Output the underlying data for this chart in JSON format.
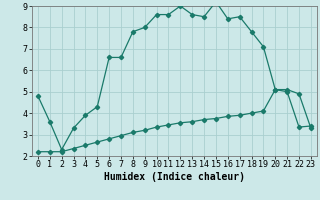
{
  "background_color": "#cce8e8",
  "grid_color": "#aacfcf",
  "line_color": "#1a7a6a",
  "line1_x": [
    0,
    1,
    2,
    3,
    4,
    5,
    6,
    7,
    8,
    9,
    10,
    11,
    12,
    13,
    14,
    15,
    16,
    17,
    18,
    19,
    20,
    21,
    22,
    23
  ],
  "line1_y": [
    4.8,
    3.6,
    2.3,
    3.3,
    3.9,
    4.3,
    6.6,
    6.6,
    7.8,
    8.0,
    8.6,
    8.6,
    9.0,
    8.6,
    8.5,
    9.2,
    8.4,
    8.5,
    7.8,
    7.1,
    5.1,
    5.1,
    4.9,
    3.3
  ],
  "line2_x": [
    0,
    1,
    2,
    3,
    4,
    5,
    6,
    7,
    8,
    9,
    10,
    11,
    12,
    13,
    14,
    15,
    16,
    17,
    18,
    19,
    20,
    21,
    22,
    23
  ],
  "line2_y": [
    2.2,
    2.2,
    2.2,
    2.35,
    2.5,
    2.65,
    2.8,
    2.95,
    3.1,
    3.2,
    3.35,
    3.45,
    3.55,
    3.6,
    3.7,
    3.75,
    3.85,
    3.9,
    4.0,
    4.1,
    5.1,
    5.0,
    3.35,
    3.4
  ],
  "xlabel": "Humidex (Indice chaleur)",
  "xlim": [
    -0.5,
    23.5
  ],
  "ylim": [
    2,
    9
  ],
  "yticks": [
    2,
    3,
    4,
    5,
    6,
    7,
    8,
    9
  ],
  "xticks": [
    0,
    1,
    2,
    3,
    4,
    5,
    6,
    7,
    8,
    9,
    10,
    11,
    12,
    13,
    14,
    15,
    16,
    17,
    18,
    19,
    20,
    21,
    22,
    23
  ],
  "label_fontsize": 7,
  "tick_fontsize": 6
}
